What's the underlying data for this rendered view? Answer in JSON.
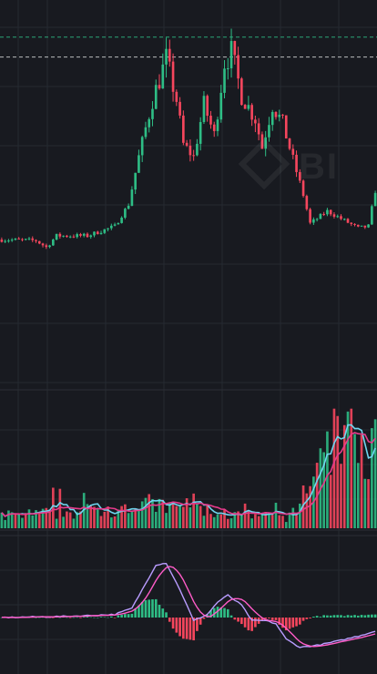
{
  "chart_data": [
    {
      "type": "candlestick",
      "panel": "price",
      "bars": 110,
      "colors": {
        "up": "#2ebd85",
        "down": "#f6465d"
      },
      "guide_lines": [
        {
          "value": 1.21,
          "style": "dashed",
          "color": "#2ebd85"
        },
        {
          "value": 1.0,
          "style": "dashed",
          "color": "#d8d8d8"
        }
      ],
      "y_range": [
        -2.5,
        1.6
      ],
      "trend_keypoints": [
        [
          0,
          -0.92
        ],
        [
          10,
          -0.93
        ],
        [
          13,
          -1.0
        ],
        [
          16,
          -0.88
        ],
        [
          25,
          -0.88
        ],
        [
          33,
          -0.78
        ],
        [
          37,
          -0.55
        ],
        [
          40,
          -0.05
        ],
        [
          44,
          0.55
        ],
        [
          48,
          0.98
        ],
        [
          51,
          0.55
        ],
        [
          53,
          0.08
        ],
        [
          56,
          -0.05
        ],
        [
          59,
          0.5
        ],
        [
          62,
          0.18
        ],
        [
          65,
          0.95
        ],
        [
          67,
          1.05
        ],
        [
          70,
          0.6
        ],
        [
          74,
          0.35
        ],
        [
          76,
          0.05
        ],
        [
          79,
          0.5
        ],
        [
          82,
          0.3
        ],
        [
          85,
          -0.08
        ],
        [
          88,
          -0.45
        ],
        [
          90,
          -0.75
        ],
        [
          92,
          -0.7
        ],
        [
          95,
          -0.62
        ],
        [
          100,
          -0.72
        ],
        [
          104,
          -0.8
        ],
        [
          107,
          -0.78
        ],
        [
          109,
          -0.4
        ]
      ]
    },
    {
      "type": "bar+line",
      "panel": "volume",
      "series": [
        {
          "indicator": "volume-bars",
          "colors": {
            "up": "#2ebd85",
            "down": "#f6465d"
          }
        },
        {
          "indicator": "moving-average",
          "period": 5,
          "color": "#6fd6f0"
        },
        {
          "indicator": "moving-average",
          "period": 10,
          "color": "#e73a8c"
        }
      ],
      "relative_level_keypoints": [
        [
          0,
          0.1
        ],
        [
          12,
          0.12
        ],
        [
          25,
          0.14
        ],
        [
          38,
          0.18
        ],
        [
          44,
          0.2
        ],
        [
          50,
          0.16
        ],
        [
          55,
          0.22
        ],
        [
          60,
          0.14
        ],
        [
          70,
          0.1
        ],
        [
          84,
          0.09
        ],
        [
          86,
          0.15
        ],
        [
          88,
          0.28
        ],
        [
          91,
          0.48
        ],
        [
          95,
          0.7
        ],
        [
          98,
          0.8
        ],
        [
          102,
          0.72
        ],
        [
          106,
          0.62
        ],
        [
          109,
          0.68
        ]
      ]
    },
    {
      "type": "bar+line",
      "panel": "macd",
      "series": [
        {
          "indicator": "histogram",
          "colors": {
            "up": "#2ebd85",
            "down": "#f6465d"
          }
        },
        {
          "indicator": "DIF",
          "color": "#b99cff"
        },
        {
          "indicator": "DEA",
          "color": "#ff5cc8"
        }
      ],
      "dif_keypoints": [
        [
          0,
          0.0
        ],
        [
          20,
          0.02
        ],
        [
          33,
          0.05
        ],
        [
          38,
          0.15
        ],
        [
          41,
          0.45
        ],
        [
          45,
          0.85
        ],
        [
          48,
          0.88
        ],
        [
          52,
          0.45
        ],
        [
          56,
          -0.05
        ],
        [
          60,
          0.05
        ],
        [
          63,
          0.25
        ],
        [
          66,
          0.36
        ],
        [
          70,
          0.2
        ],
        [
          73,
          -0.05
        ],
        [
          77,
          -0.05
        ],
        [
          80,
          -0.1
        ],
        [
          83,
          -0.35
        ],
        [
          87,
          -0.48
        ],
        [
          92,
          -0.45
        ],
        [
          98,
          -0.38
        ],
        [
          104,
          -0.3
        ],
        [
          109,
          -0.22
        ]
      ]
    }
  ]
}
